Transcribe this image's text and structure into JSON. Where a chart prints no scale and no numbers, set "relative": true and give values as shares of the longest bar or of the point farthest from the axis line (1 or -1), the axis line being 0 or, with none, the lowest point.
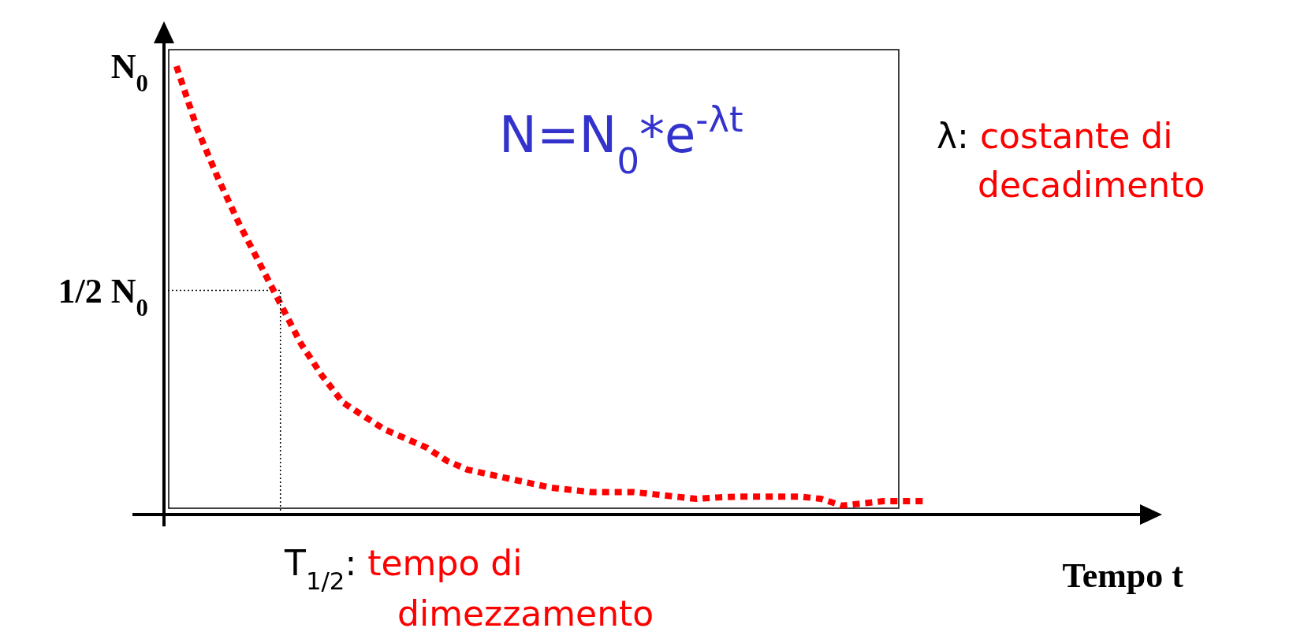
{
  "chart_data": {
    "type": "line",
    "relative": true,
    "xlabel": "Tempo t",
    "categories": [
      null,
      null,
      null,
      null,
      null,
      null,
      null,
      null,
      null,
      null,
      null,
      null,
      null,
      null,
      null,
      null,
      null,
      null,
      null,
      null,
      null,
      null,
      null,
      null,
      null,
      null,
      null,
      null,
      null,
      null,
      null,
      null,
      null,
      null,
      null,
      null,
      null
    ],
    "grid": false,
    "marker": "none",
    "line_style": "dotted",
    "series": [
      {
        "color": "#ff0000",
        "values": [
          1.0,
          0.86,
          0.75,
          0.65,
          0.56,
          0.47,
          0.38,
          0.31,
          0.25,
          0.22,
          0.19,
          0.17,
          0.15,
          0.12,
          0.1,
          0.09,
          0.08,
          0.07,
          0.06,
          0.055,
          0.05,
          0.05,
          0.05,
          0.045,
          0.04,
          0.035,
          0.038,
          0.04,
          0.04,
          0.04,
          0.04,
          0.035,
          0.02,
          0.025,
          0.03,
          0.03,
          0.03
        ]
      }
    ],
    "ref_lines": [
      {
        "axis": "y",
        "value": 0.5,
        "label": "1/2 N$_{0}$",
        "color": "#000000",
        "line_style": "dotted"
      }
    ],
    "annotations": [
      "N=N$_{0}$*e$^{-λt}$",
      "λ: costante di decadimento",
      "T$_{1/2}$: tempo di dimezzamento",
      "N$_{0}$"
    ]
  }
}
